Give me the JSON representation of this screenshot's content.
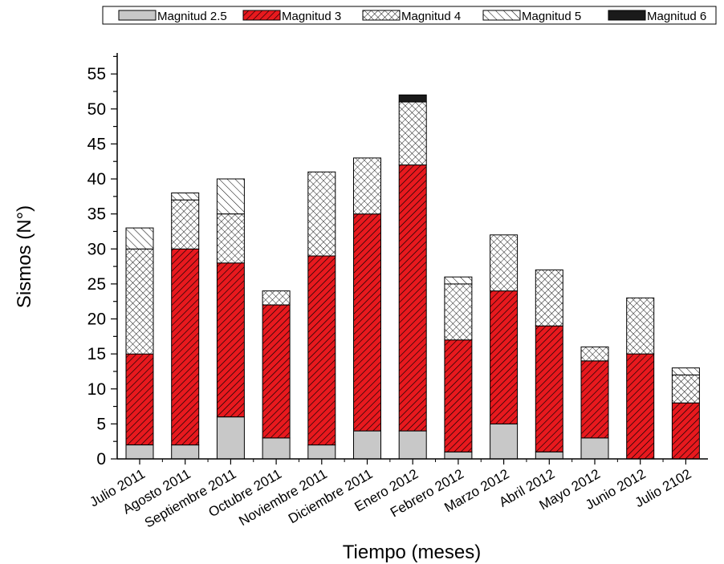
{
  "chart_data": {
    "type": "bar",
    "stacked": true,
    "categories": [
      "Julio 2011",
      "Agosto 2011",
      "Septiembre 2011",
      "Octubre 2011",
      "Noviembre 2011",
      "Diciembre 2011",
      "Enero 2012",
      "Febrero 2012",
      "Marzo 2012",
      "Abril 2012",
      "Mayo 2012",
      "Junio 2012",
      "Julio 2102"
    ],
    "series": [
      {
        "name": "Magnitud 2.5",
        "values": [
          2,
          2,
          6,
          3,
          2,
          4,
          4,
          1,
          5,
          1,
          3,
          0,
          0
        ],
        "color": "#c8c8c8",
        "pattern": "solid"
      },
      {
        "name": "Magnitud 3",
        "values": [
          13,
          28,
          22,
          19,
          27,
          31,
          38,
          16,
          19,
          18,
          11,
          15,
          8
        ],
        "color": "#e8191e",
        "pattern": "diagonal-hatch"
      },
      {
        "name": "Magnitud 4",
        "values": [
          15,
          7,
          7,
          2,
          12,
          8,
          9,
          8,
          8,
          8,
          2,
          8,
          4
        ],
        "color": "#ffffff",
        "pattern": "crosshatch"
      },
      {
        "name": "Magnitud 5",
        "values": [
          3,
          1,
          5,
          0,
          0,
          0,
          0,
          1,
          0,
          0,
          0,
          0,
          1
        ],
        "color": "#ffffff",
        "pattern": "back-diagonal-hatch"
      },
      {
        "name": "Magnitud 6",
        "values": [
          0,
          0,
          0,
          0,
          0,
          0,
          1,
          0,
          0,
          0,
          0,
          0,
          0
        ],
        "color": "#1a1a1a",
        "pattern": "solid"
      }
    ],
    "xlabel": "Tiempo (meses)",
    "ylabel": "Sismos (N°)",
    "ylim": [
      0,
      58
    ],
    "yticks": [
      0,
      5,
      10,
      15,
      20,
      25,
      30,
      35,
      40,
      45,
      50,
      55
    ],
    "grid": false,
    "legend_position": "top"
  }
}
